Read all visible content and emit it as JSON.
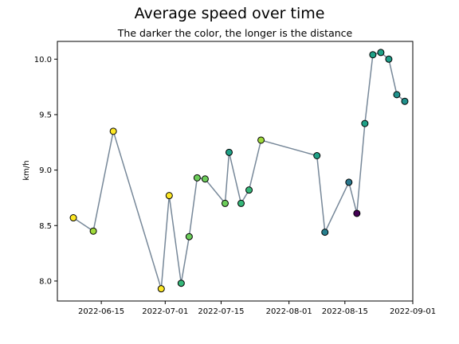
{
  "chart_data": {
    "type": "scatter",
    "title": "Average speed over time",
    "subtitle": "The darker the color, the longer is the distance",
    "xlabel": "",
    "ylabel": "km/h",
    "x_ticks": [
      "2022-06-15",
      "2022-07-01",
      "2022-07-15",
      "2022-08-01",
      "2022-08-15",
      "2022-09-01"
    ],
    "y_ticks": [
      "8.0",
      "8.5",
      "9.0",
      "9.5",
      "10.0"
    ],
    "xlim": [
      "2022-06-04",
      "2022-09-01"
    ],
    "ylim": [
      7.82,
      10.16
    ],
    "line_color": "#778899",
    "colormap": "viridis",
    "grid": false,
    "points": [
      {
        "date": "2022-06-08",
        "speed": 8.57,
        "color": "#fde725"
      },
      {
        "date": "2022-06-13",
        "speed": 8.45,
        "color": "#9fda3a"
      },
      {
        "date": "2022-06-18",
        "speed": 9.35,
        "color": "#fde725"
      },
      {
        "date": "2022-06-30",
        "speed": 7.93,
        "color": "#fde725"
      },
      {
        "date": "2022-07-02",
        "speed": 8.77,
        "color": "#fde725"
      },
      {
        "date": "2022-07-05",
        "speed": 7.98,
        "color": "#35b779"
      },
      {
        "date": "2022-07-07",
        "speed": 8.4,
        "color": "#6ccd5a"
      },
      {
        "date": "2022-07-09",
        "speed": 8.93,
        "color": "#6ccd5a"
      },
      {
        "date": "2022-07-11",
        "speed": 8.92,
        "color": "#6ccd5a"
      },
      {
        "date": "2022-07-16",
        "speed": 8.7,
        "color": "#6ccd5a"
      },
      {
        "date": "2022-07-17",
        "speed": 9.16,
        "color": "#1fa187"
      },
      {
        "date": "2022-07-20",
        "speed": 8.7,
        "color": "#35b779"
      },
      {
        "date": "2022-07-22",
        "speed": 8.82,
        "color": "#35b779"
      },
      {
        "date": "2022-07-25",
        "speed": 9.27,
        "color": "#9fda3a"
      },
      {
        "date": "2022-08-08",
        "speed": 9.13,
        "color": "#1fa187"
      },
      {
        "date": "2022-08-10",
        "speed": 8.44,
        "color": "#277f8e"
      },
      {
        "date": "2022-08-16",
        "speed": 8.89,
        "color": "#2a788e"
      },
      {
        "date": "2022-08-18",
        "speed": 8.61,
        "color": "#440154"
      },
      {
        "date": "2022-08-20",
        "speed": 9.42,
        "color": "#1fa187"
      },
      {
        "date": "2022-08-22",
        "speed": 10.04,
        "color": "#1fa187"
      },
      {
        "date": "2022-08-24",
        "speed": 10.06,
        "color": "#1fa187"
      },
      {
        "date": "2022-08-26",
        "speed": 10.0,
        "color": "#1f9e89"
      },
      {
        "date": "2022-08-28",
        "speed": 9.68,
        "color": "#21918c"
      },
      {
        "date": "2022-08-30",
        "speed": 9.62,
        "color": "#21918c"
      }
    ]
  }
}
